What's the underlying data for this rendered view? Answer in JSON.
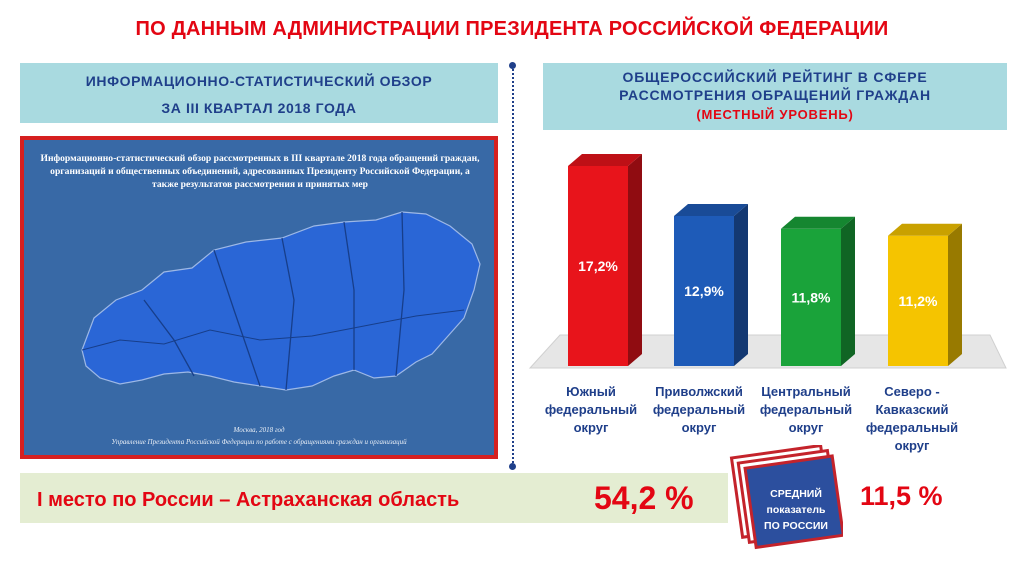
{
  "header": {
    "title": "ПО ДАННЫМ АДМИНИСТРАЦИИ ПРЕЗИДЕНТА РОССИЙСКОЙ ФЕДЕРАЦИИ"
  },
  "left_panel": {
    "line1": "ИНФОРМАЦИОННО-СТАТИСТИЧЕСКИЙ ОБЗОР",
    "line2": "ЗА III КВАРТАЛ 2018 ГОДА"
  },
  "map_card": {
    "text": "Информационно-статистический обзор рассмотренных в III квартале 2018 года обращений граждан, организаций и общественных объединений, адресованных Президенту Российской Федерации, а также результатов рассмотрения и принятых мер",
    "city": "Москва, 2018 год",
    "footer": "Управление Президента Российской Федерации по работе с обращениями граждан и организаций"
  },
  "right_panel": {
    "line1": "ОБЩЕРОССИЙСКИЙ РЕЙТИНГ В СФЕРЕ",
    "line2": "РАССМОТРЕНИЯ ОБРАЩЕНИЙ ГРАЖДАН",
    "line3": "(МЕСТНЫЙ УРОВЕНЬ)"
  },
  "chart_data": {
    "type": "bar",
    "categories": [
      "Южный федеральный округ",
      "Приволжский федеральный округ",
      "Центральный федеральный округ",
      "Северо - Кавказский федеральный округ"
    ],
    "values": [
      17.2,
      12.9,
      11.8,
      11.2
    ],
    "data_labels": [
      "17,2%",
      "12,9%",
      "11,8%",
      "11,2%"
    ],
    "colors": [
      "#e8141b",
      "#1e5bb8",
      "#1aa33a",
      "#f5c400"
    ],
    "style": "3d-columns",
    "title": "",
    "xlabel": "",
    "ylabel": "",
    "ylim": [
      0,
      17.2
    ]
  },
  "category_labels": [
    [
      "Южный",
      "федеральный",
      "округ"
    ],
    [
      "Приволжский",
      "федеральный",
      "округ"
    ],
    [
      "Центральный",
      "федеральный",
      "округ"
    ],
    [
      "Северо -",
      "Кавказский",
      "федеральный",
      "округ"
    ]
  ],
  "bottom": {
    "first_place_text": "I место по России – Астраханская область",
    "first_place_value": "54,2 %",
    "avg_label": [
      "СРЕДНИЙ",
      "показатель",
      "ПО РОССИИ"
    ],
    "avg_value": "11,5 %"
  },
  "colors": {
    "accent_red": "#e30613",
    "navy": "#1f3f8a",
    "panel_blue": "#a9dae0",
    "band_green": "#e4edd2"
  }
}
